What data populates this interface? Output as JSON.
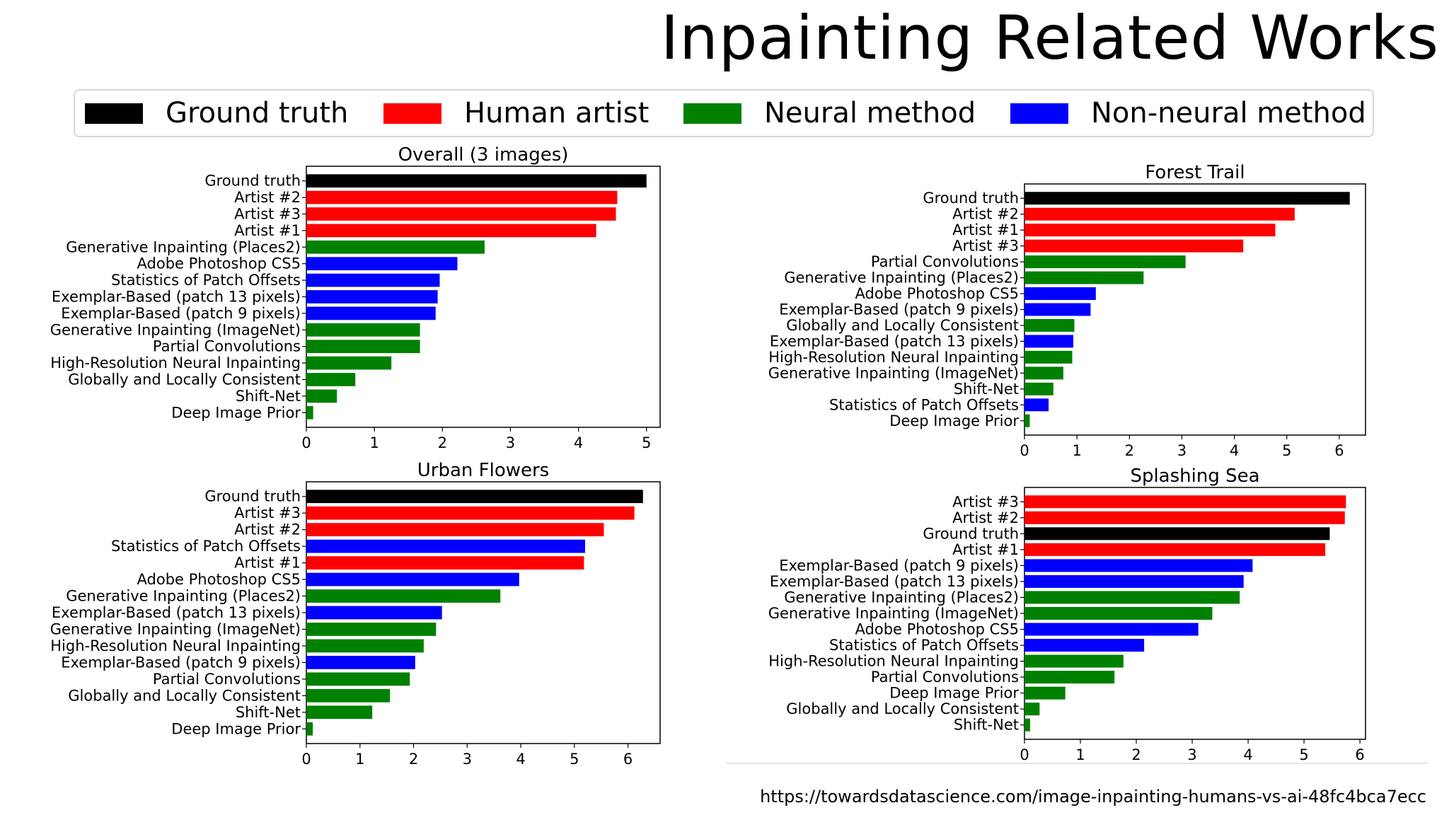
{
  "slide": {
    "title": "Inpainting Related Works",
    "source": "https://towardsdatascience.com/image-inpainting-humans-vs-ai-48fc4bca7ecc"
  },
  "legend": {
    "items": [
      {
        "label": "Ground truth",
        "color": "#000000"
      },
      {
        "label": "Human artist",
        "color": "#ff0000"
      },
      {
        "label": "Neural method",
        "color": "#008000"
      },
      {
        "label": "Non-neural method",
        "color": "#0000ff"
      }
    ]
  },
  "chart_data": [
    {
      "type": "bar",
      "orientation": "horizontal",
      "title": "Overall (3 images)",
      "xlim": [
        0,
        5.2
      ],
      "xticks": [
        0,
        1,
        2,
        3,
        4,
        5
      ],
      "categories": [
        "Ground truth",
        "Artist #2",
        "Artist #3",
        "Artist #1",
        "Generative Inpainting (Places2)",
        "Adobe Photoshop CS5",
        "Statistics of Patch Offsets",
        "Exemplar-Based (patch 13 pixels)",
        "Exemplar-Based (patch 9 pixels)",
        "Generative Inpainting (ImageNet)",
        "Partial Convolutions",
        "High-Resolution Neural Inpainting",
        "Globally and Locally Consistent",
        "Shift-Net",
        "Deep Image Prior"
      ],
      "values": [
        5.0,
        4.57,
        4.55,
        4.26,
        2.62,
        2.22,
        1.96,
        1.93,
        1.9,
        1.67,
        1.67,
        1.25,
        0.72,
        0.45,
        0.1
      ],
      "groups": [
        "Ground truth",
        "Human artist",
        "Human artist",
        "Human artist",
        "Neural method",
        "Non-neural method",
        "Non-neural method",
        "Non-neural method",
        "Non-neural method",
        "Neural method",
        "Neural method",
        "Neural method",
        "Neural method",
        "Neural method",
        "Neural method"
      ]
    },
    {
      "type": "bar",
      "orientation": "horizontal",
      "title": "Forest Trail",
      "xlim": [
        0,
        6.5
      ],
      "xticks": [
        0,
        1,
        2,
        3,
        4,
        5,
        6
      ],
      "categories": [
        "Ground truth",
        "Artist #2",
        "Artist #1",
        "Artist #3",
        "Partial Convolutions",
        "Generative Inpainting (Places2)",
        "Adobe Photoshop CS5",
        "Exemplar-Based (patch 9 pixels)",
        "Globally and Locally Consistent",
        "Exemplar-Based (patch 13 pixels)",
        "High-Resolution Neural Inpainting",
        "Generative Inpainting (ImageNet)",
        "Shift-Net",
        "Statistics of Patch Offsets",
        "Deep Image Prior"
      ],
      "values": [
        6.2,
        5.15,
        4.78,
        4.17,
        3.07,
        2.27,
        1.36,
        1.26,
        0.95,
        0.93,
        0.91,
        0.74,
        0.55,
        0.46,
        0.1
      ],
      "groups": [
        "Ground truth",
        "Human artist",
        "Human artist",
        "Human artist",
        "Neural method",
        "Neural method",
        "Non-neural method",
        "Non-neural method",
        "Neural method",
        "Non-neural method",
        "Neural method",
        "Neural method",
        "Neural method",
        "Non-neural method",
        "Neural method"
      ]
    },
    {
      "type": "bar",
      "orientation": "horizontal",
      "title": "Urban Flowers",
      "xlim": [
        0,
        6.6
      ],
      "xticks": [
        0,
        1,
        2,
        3,
        4,
        5,
        6
      ],
      "categories": [
        "Ground truth",
        "Artist #3",
        "Artist #2",
        "Statistics of Patch Offsets",
        "Artist #1",
        "Adobe Photoshop CS5",
        "Generative Inpainting (Places2)",
        "Exemplar-Based (patch 13 pixels)",
        "Generative Inpainting (ImageNet)",
        "High-Resolution Neural Inpainting",
        "Exemplar-Based (patch 9 pixels)",
        "Partial Convolutions",
        "Globally and Locally Consistent",
        "Shift-Net",
        "Deep Image Prior"
      ],
      "values": [
        6.28,
        6.12,
        5.55,
        5.2,
        5.18,
        3.97,
        3.62,
        2.53,
        2.42,
        2.19,
        2.03,
        1.93,
        1.56,
        1.23,
        0.12
      ],
      "groups": [
        "Ground truth",
        "Human artist",
        "Human artist",
        "Non-neural method",
        "Human artist",
        "Non-neural method",
        "Neural method",
        "Non-neural method",
        "Neural method",
        "Neural method",
        "Non-neural method",
        "Neural method",
        "Neural method",
        "Neural method",
        "Neural method"
      ]
    },
    {
      "type": "bar",
      "orientation": "horizontal",
      "title": "Splashing Sea",
      "xlim": [
        0,
        6.1
      ],
      "xticks": [
        0,
        1,
        2,
        3,
        4,
        5,
        6
      ],
      "categories": [
        "Artist #3",
        "Artist #2",
        "Ground truth",
        "Artist #1",
        "Exemplar-Based (patch 9 pixels)",
        "Exemplar-Based (patch 13 pixels)",
        "Generative Inpainting (Places2)",
        "Generative Inpainting (ImageNet)",
        "Adobe Photoshop CS5",
        "Statistics of Patch Offsets",
        "High-Resolution Neural Inpainting",
        "Partial Convolutions",
        "Deep Image Prior",
        "Globally and Locally Consistent",
        "Shift-Net"
      ],
      "values": [
        5.75,
        5.73,
        5.46,
        5.38,
        4.08,
        3.92,
        3.85,
        3.36,
        3.11,
        2.14,
        1.77,
        1.61,
        0.73,
        0.27,
        0.1
      ],
      "groups": [
        "Human artist",
        "Human artist",
        "Ground truth",
        "Human artist",
        "Non-neural method",
        "Non-neural method",
        "Neural method",
        "Neural method",
        "Non-neural method",
        "Non-neural method",
        "Neural method",
        "Neural method",
        "Neural method",
        "Neural method",
        "Neural method"
      ]
    }
  ]
}
